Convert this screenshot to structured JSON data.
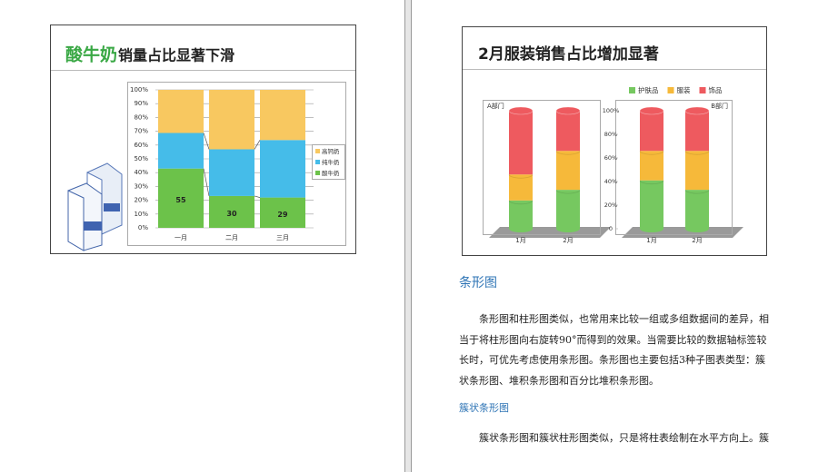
{
  "chart_data": [
    {
      "type": "bar",
      "stacking": "percent",
      "title_highlight": "酸牛奶",
      "title_highlight_color": "#3aa845",
      "title": "销量占比显著下滑",
      "categories": [
        "一月",
        "二月",
        "三月"
      ],
      "series": [
        {
          "name": "酸牛奶",
          "color": "#6cc24a",
          "values": [
            55,
            30,
            29
          ],
          "show_values": true
        },
        {
          "name": "纯牛奶",
          "color": "#45bce9",
          "values": [
            33,
            44,
            55
          ]
        },
        {
          "name": "高钙奶",
          "color": "#f8c860",
          "values": [
            40,
            56,
            48
          ]
        }
      ],
      "ylim": [
        0,
        100
      ],
      "yticks": [
        {
          "value": 0,
          "label": "0%"
        },
        {
          "value": 10,
          "label": "10%"
        },
        {
          "value": 20,
          "label": "20%"
        },
        {
          "value": 30,
          "label": "30%"
        },
        {
          "value": 40,
          "label": "40%"
        },
        {
          "value": 50,
          "label": "50%"
        },
        {
          "value": 60,
          "label": "60%"
        },
        {
          "value": 70,
          "label": "70%"
        },
        {
          "value": 80,
          "label": "80%"
        },
        {
          "value": 90,
          "label": "90%"
        },
        {
          "value": 100,
          "label": "100%"
        }
      ],
      "grid": true,
      "series_lines": true,
      "legend": "right"
    },
    {
      "type": "cylinder",
      "title": "2月服装销售占比增加显著",
      "panels": [
        "A部门",
        "B部门"
      ],
      "categories": [
        "1月",
        "2月",
        "1月",
        "2月"
      ],
      "series": [
        {
          "name": "护肤品",
          "color": "#76c860",
          "values": [
            24,
            33,
            41,
            33
          ]
        },
        {
          "name": "服装",
          "color": "#f6b93a",
          "values": [
            22,
            33,
            25,
            33
          ]
        },
        {
          "name": "饰品",
          "color": "#ee5a5f",
          "values": [
            54,
            34,
            34,
            34
          ]
        }
      ],
      "ylim": [
        0,
        100
      ],
      "yticks": [
        0,
        {
          "value": 20,
          "label": "20%"
        },
        {
          "value": 40,
          "label": "40%"
        },
        {
          "value": 60,
          "label": "60%"
        },
        {
          "value": 80,
          "label": "80%"
        },
        {
          "value": 100,
          "label": "100%"
        }
      ],
      "legend": "top-right"
    }
  ],
  "document": {
    "heading": "条形图",
    "paragraph_1": "条形图和柱形图类似，也常用来比较一组或多组数据间的差异，相当于将柱形图向右旋转90°而得到的效果。当需要比较的数据轴标签较长时，可优先考虑使用条形图。条形图也主要包括3种子图表类型：簇状条形图、堆积条形图和百分比堆积条形图。",
    "subheading": "簇状条形图",
    "paragraph_2": "簇状条形图和簇状柱形图类似，只是将柱表绘制在水平方向上。簇"
  }
}
